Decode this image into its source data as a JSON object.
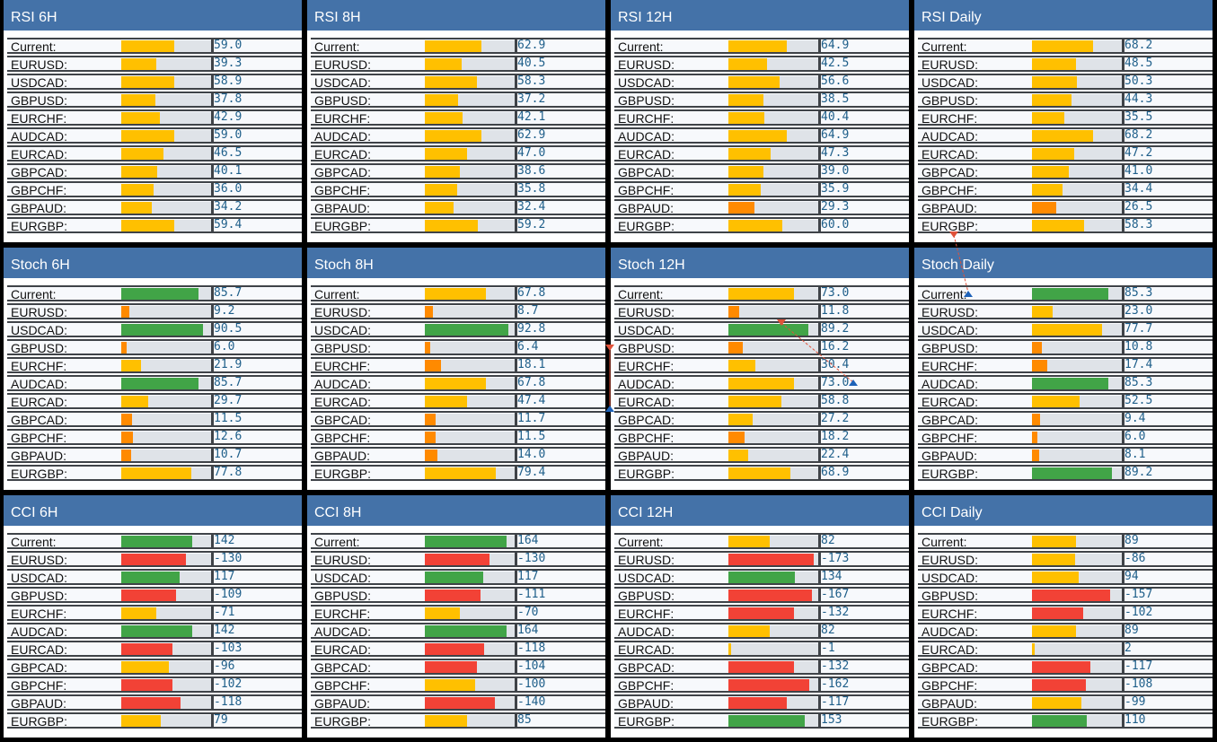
{
  "colors": {
    "title_bg": "#4472a8",
    "green": "#41a447",
    "yellow": "#ffc000",
    "orange": "#ff8a00",
    "red": "#f24236",
    "value_text": "#1f5f8a"
  },
  "row_labels": [
    "Current:",
    "EURUSD:",
    "USDCAD:",
    "GBPUSD:",
    "EURCHF:",
    "AUDCAD:",
    "EURCAD:",
    "GBPCAD:",
    "GBPCHF:",
    "GBPAUD:",
    "EURGBP:"
  ],
  "panels": [
    {
      "title": "RSI 6H",
      "kind": "rsi",
      "values": [
        "59.0",
        "39.3",
        "58.9",
        "37.8",
        "42.9",
        "59.0",
        "46.5",
        "40.1",
        "36.0",
        "34.2",
        "59.4"
      ]
    },
    {
      "title": "RSI 8H",
      "kind": "rsi",
      "values": [
        "62.9",
        "40.5",
        "58.3",
        "37.2",
        "42.1",
        "62.9",
        "47.0",
        "38.6",
        "35.8",
        "32.4",
        "59.2"
      ]
    },
    {
      "title": "RSI 12H",
      "kind": "rsi",
      "values": [
        "64.9",
        "42.5",
        "56.6",
        "38.5",
        "40.4",
        "64.9",
        "47.3",
        "39.0",
        "35.9",
        "29.3",
        "60.0"
      ]
    },
    {
      "title": "RSI Daily",
      "kind": "rsi",
      "values": [
        "68.2",
        "48.5",
        "50.3",
        "44.3",
        "35.5",
        "68.2",
        "47.2",
        "41.0",
        "34.4",
        "26.5",
        "58.3"
      ]
    },
    {
      "title": "Stoch 6H",
      "kind": "stoch",
      "values": [
        "85.7",
        "9.2",
        "90.5",
        "6.0",
        "21.9",
        "85.7",
        "29.7",
        "11.5",
        "12.6",
        "10.7",
        "77.8"
      ]
    },
    {
      "title": "Stoch 8H",
      "kind": "stoch",
      "values": [
        "67.8",
        "8.7",
        "92.8",
        "6.4",
        "18.1",
        "67.8",
        "47.4",
        "11.7",
        "11.5",
        "14.0",
        "79.4"
      ]
    },
    {
      "title": "Stoch 12H",
      "kind": "stoch",
      "values": [
        "73.0",
        "11.8",
        "89.2",
        "16.2",
        "30.4",
        "73.0",
        "58.8",
        "27.2",
        "18.2",
        "22.4",
        "68.9"
      ]
    },
    {
      "title": "Stoch Daily",
      "kind": "stoch",
      "values": [
        "85.3",
        "23.0",
        "77.7",
        "10.8",
        "17.4",
        "85.3",
        "52.5",
        "9.4",
        "6.0",
        "8.1",
        "89.2"
      ]
    },
    {
      "title": "CCI 6H",
      "kind": "cci",
      "values": [
        "142",
        "-130",
        "117",
        "-109",
        "-71",
        "142",
        "-103",
        "-96",
        "-102",
        "-118",
        "79"
      ]
    },
    {
      "title": "CCI 8H",
      "kind": "cci",
      "values": [
        "164",
        "-130",
        "117",
        "-111",
        "-70",
        "164",
        "-118",
        "-104",
        "-100",
        "-140",
        "85"
      ]
    },
    {
      "title": "CCI 12H",
      "kind": "cci",
      "values": [
        "82",
        "-173",
        "134",
        "-167",
        "-132",
        "82",
        "-1",
        "-132",
        "-162",
        "-117",
        "153"
      ]
    },
    {
      "title": "CCI Daily",
      "kind": "cci",
      "values": [
        "89",
        "-86",
        "94",
        "-157",
        "-102",
        "89",
        "2",
        "-117",
        "-108",
        "-99",
        "110"
      ]
    }
  ]
}
